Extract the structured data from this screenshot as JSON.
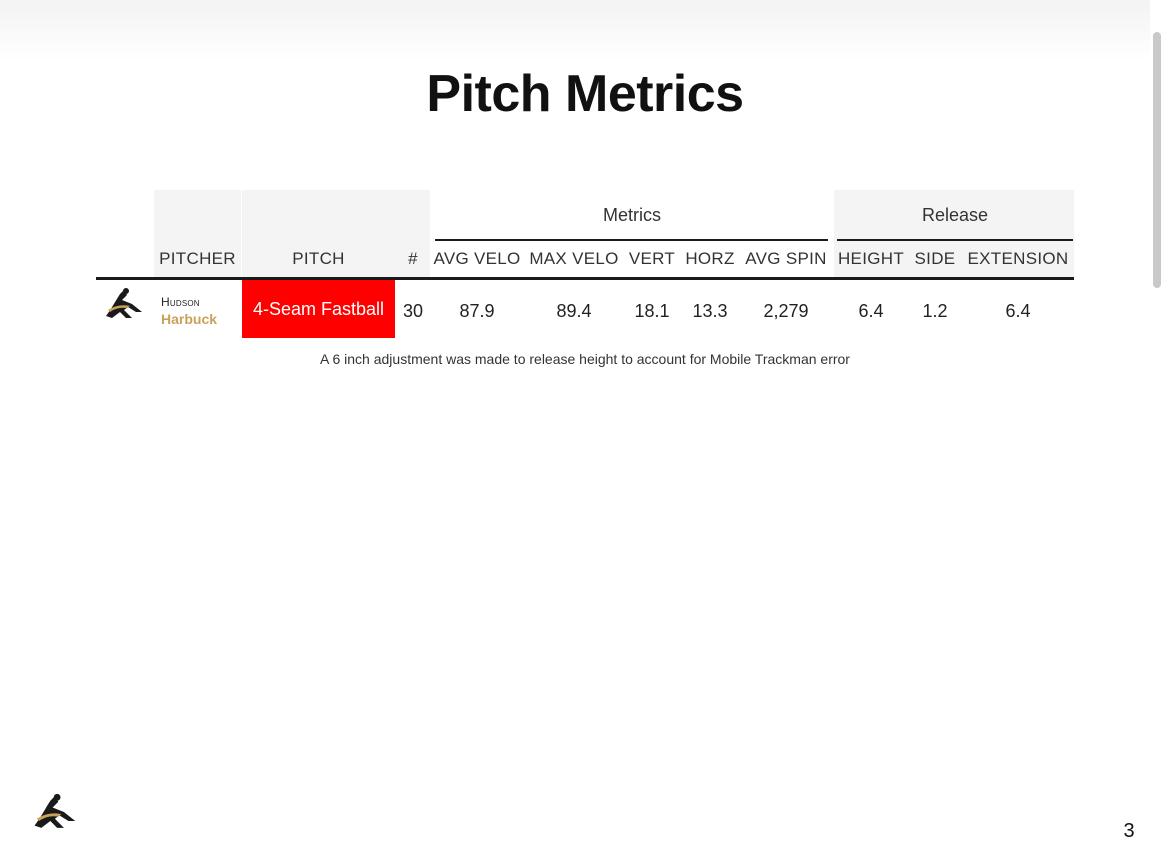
{
  "title": "Pitch Metrics",
  "table": {
    "groups": {
      "metrics": "Metrics",
      "release": "Release"
    },
    "headers": {
      "pitcher": "PITCHER",
      "pitch": "PITCH",
      "count": "#",
      "avg_velo": "AVG VELO",
      "max_velo": "MAX VELO",
      "vert": "VERT",
      "horz": "HORZ",
      "avg_spin": "AVG SPIN",
      "height": "HEIGHT",
      "side": "SIDE",
      "extension": "EXTENSION"
    },
    "row": {
      "pitcher_first": "Hudson",
      "pitcher_last": "Harbuck",
      "pitch": "4-Seam Fastball",
      "pitch_color": "#ff0000",
      "count": "30",
      "avg_velo": "87.9",
      "max_velo": "89.4",
      "vert": "18.1",
      "horz": "13.3",
      "avg_spin": "2,279",
      "height": "6.4",
      "side": "1.2",
      "extension": "6.4"
    }
  },
  "note": "A 6 inch adjustment was made to release height to account for Mobile Trackman error",
  "page_number": "3",
  "colors": {
    "accent_gold": "#c9a15a",
    "pitch_highlight": "#ff0000"
  },
  "icons": {
    "logo": "baseball-pitcher-logo"
  }
}
